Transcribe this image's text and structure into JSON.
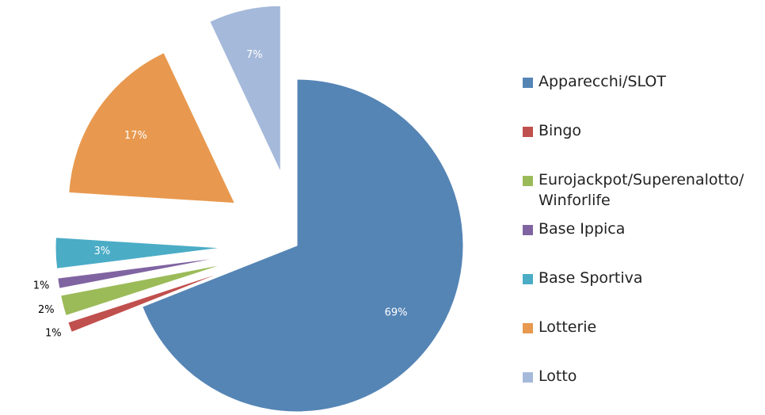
{
  "chart_data": {
    "type": "pie",
    "categories": [
      "Apparecchi/SLOT",
      "Bingo",
      "Eurojackpot/Superenalotto/Winforlife",
      "Base Ippica",
      "Base Sportiva",
      "Lotterie",
      "Lotto"
    ],
    "values": [
      69,
      1,
      2,
      1,
      3,
      17,
      7
    ],
    "value_labels": [
      "69%",
      "1%",
      "2%",
      "1%",
      "3%",
      "17%",
      "7%"
    ],
    "colors": [
      "#5585b5",
      "#c0504d",
      "#9bbb59",
      "#8064a2",
      "#4bacc6",
      "#e8994f",
      "#a5b9da"
    ],
    "legend": "right"
  }
}
